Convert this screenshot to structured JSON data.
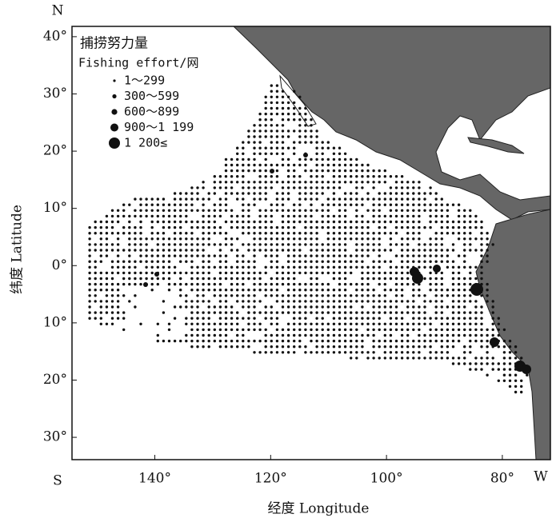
{
  "map": {
    "compass": {
      "north": "N",
      "south": "S",
      "west": "W"
    },
    "xlabel": "经度 Longitude",
    "ylabel": "纬度 Latitude",
    "xlim": [
      -154.3,
      -71.7
    ],
    "ylim": [
      -33.9,
      41.8
    ],
    "xticks": [
      {
        "value": -140,
        "label": "140°"
      },
      {
        "value": -120,
        "label": "120°"
      },
      {
        "value": -100,
        "label": "100°"
      },
      {
        "value": -80,
        "label": "80°"
      }
    ],
    "yticks": [
      {
        "value": 40,
        "label": "40°"
      },
      {
        "value": 30,
        "label": "30°"
      },
      {
        "value": 20,
        "label": "20°"
      },
      {
        "value": 10,
        "label": "10°"
      },
      {
        "value": 0,
        "label": "0°"
      },
      {
        "value": -10,
        "label": "10°"
      },
      {
        "value": -20,
        "label": "20°"
      },
      {
        "value": -30,
        "label": "30°"
      }
    ],
    "legend": {
      "title": "捕捞努力量",
      "subtitle": "Fishing effort/网",
      "items": [
        "1～299",
        "300～599",
        "600～899",
        "900～1 199",
        "1 200≤"
      ]
    }
  }
}
